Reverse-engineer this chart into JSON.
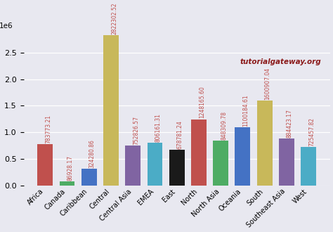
{
  "categories": [
    "Africa",
    "Canada",
    "Caribbean",
    "Central",
    "Central Asia",
    "EMEA",
    "East",
    "North",
    "North Asia",
    "Oceania",
    "South",
    "Southeast Asia",
    "West"
  ],
  "values": [
    783773.21,
    86928.17,
    324280.86,
    2822302.52,
    752826.57,
    806161.31,
    678781.24,
    1248165.6,
    848309.78,
    1100184.61,
    1600907.04,
    884423.17,
    725457.82
  ],
  "bar_colors": [
    "#c0504d",
    "#4eac64",
    "#4472c4",
    "#c8b85a",
    "#8064a2",
    "#4bacc6",
    "#1a1a1a",
    "#c0504d",
    "#4eac64",
    "#4472c4",
    "#c8b85a",
    "#8064a2",
    "#4bacc6"
  ],
  "value_color": "#c0504d",
  "bg_color": "#e8e8f0",
  "watermark": "tutorialgateway.org",
  "watermark_color": "#8b1a1a",
  "ylim": [
    0,
    2900000
  ],
  "yticks": [
    0.0,
    0.5,
    1.0,
    1.5,
    2.0,
    2.5
  ],
  "value_fontsize": 5.5
}
